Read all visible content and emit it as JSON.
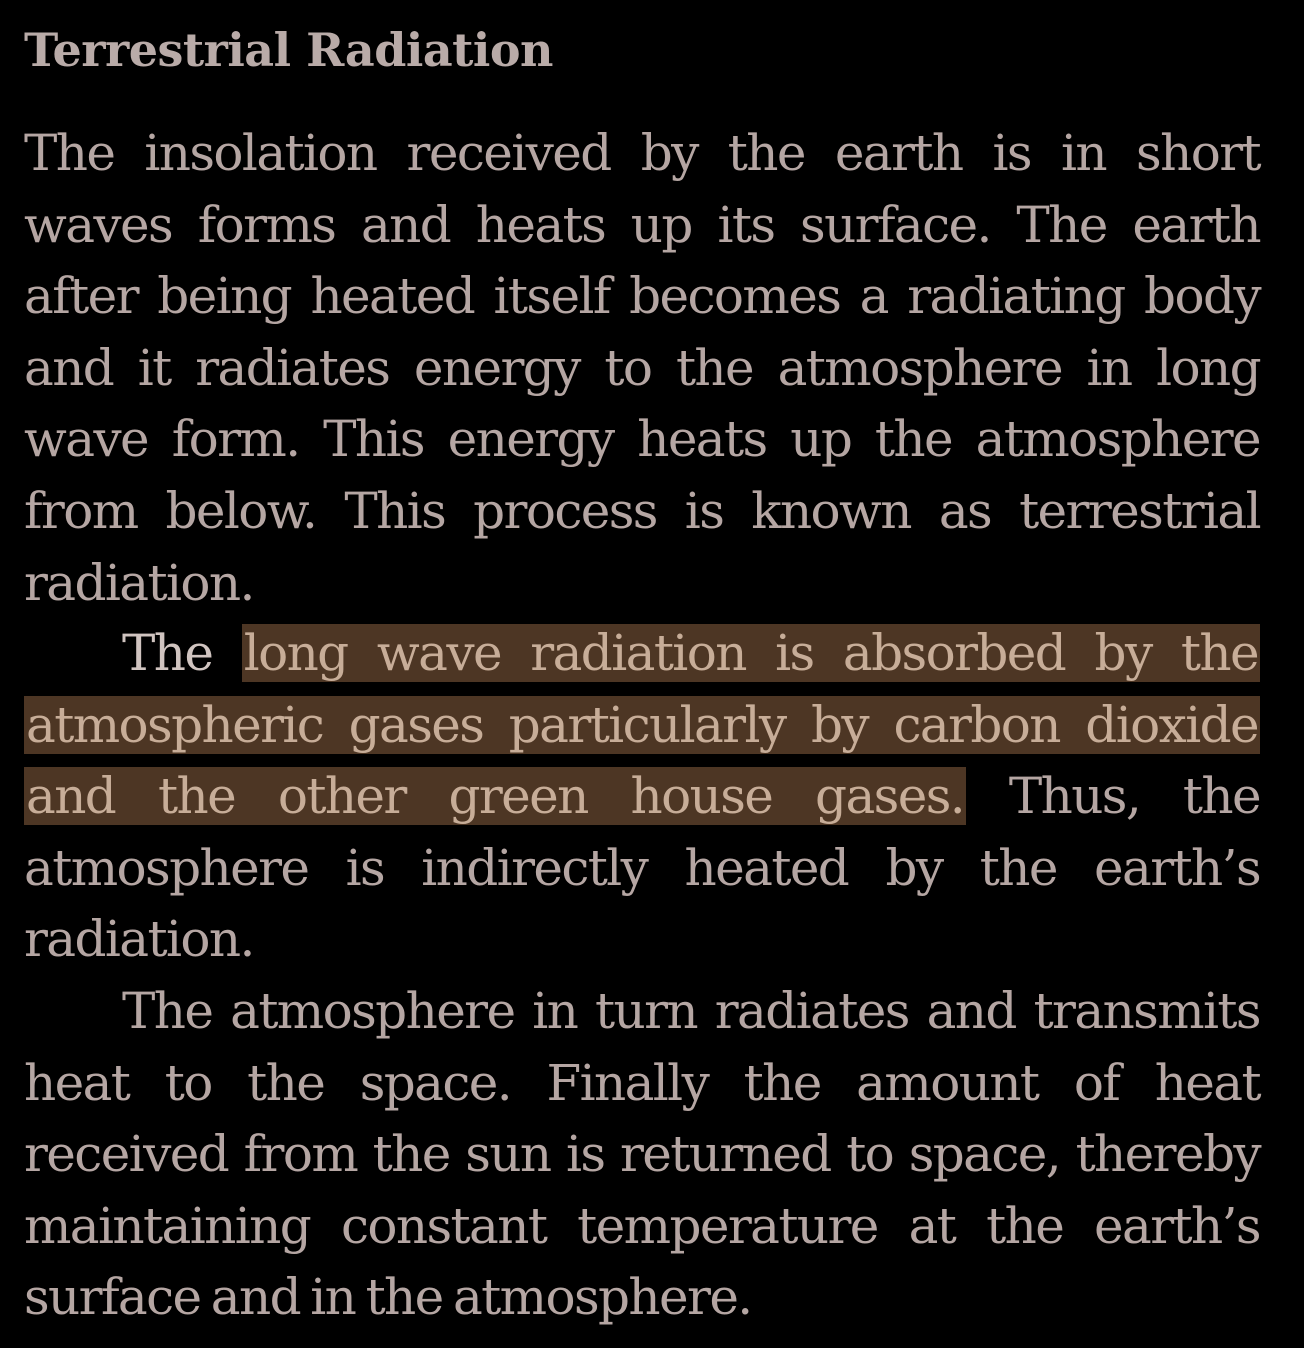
{
  "document": {
    "heading": "Terrestrial Radiation",
    "paragraph_1": "The insolation received by the earth is in short waves forms and heats up its surface. The earth after being heated itself becomes a radiating body and it radiates energy to the atmosphere in long wave form. This energy heats up the atmosphere from below. This process is known as terrestrial radiation.",
    "paragraph_2_before": "The ",
    "paragraph_2_highlight": "long wave radiation is absorbed by the atmospheric gases particularly by carbon dioxide and the other green house gases.",
    "paragraph_2_after": " Thus, the atmosphere is indirectly heated by the earth’s radiation.",
    "paragraph_3": "The atmosphere in turn radiates and transmits heat to the space. Finally the amount of heat received from the sun is returned to space, thereby maintaining constant temperature at the earth’s surface and in the atmosphere."
  },
  "colors": {
    "background": "#000000",
    "text": "#b5a6a3",
    "heading_text": "#b9aba8",
    "highlight_background": "#4d3624",
    "highlight_text": "#c7ad98",
    "pre_highlight_text": "#d0c4c0"
  }
}
